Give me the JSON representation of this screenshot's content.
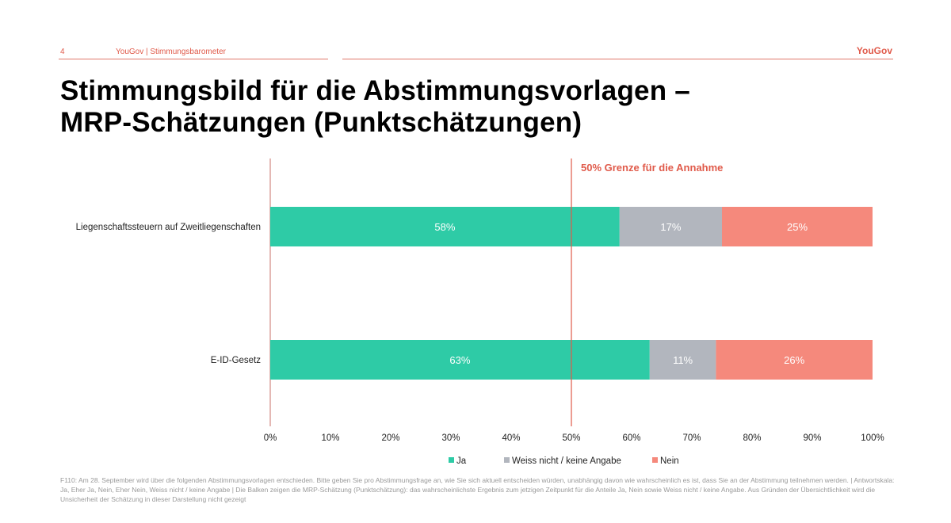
{
  "header": {
    "page_number": "4",
    "subtitle": "YouGov | Stimmungsbarometer",
    "brand": "YouGov"
  },
  "title_lines": [
    "Stimmungsbild für die Abstimmungsvorlagen –",
    "MRP-Schätzungen (Punktschätzungen)"
  ],
  "chart_data": {
    "type": "bar",
    "orientation": "horizontal",
    "stacked": true,
    "categories": [
      "Liegenschaftssteuern auf Zweitliegenschaften",
      "E-ID-Gesetz"
    ],
    "series": [
      {
        "name": "Ja",
        "values": [
          58,
          63
        ],
        "color": "#2ecba6",
        "labels": [
          "58%",
          "63%"
        ]
      },
      {
        "name": "Weiss nicht / keine Angabe",
        "values": [
          17,
          11
        ],
        "color": "#b2b6be",
        "labels": [
          "17%",
          "11%"
        ]
      },
      {
        "name": "Nein",
        "values": [
          25,
          26
        ],
        "color": "#f5897c",
        "labels": [
          "25%",
          "26%"
        ]
      }
    ],
    "xlim": [
      0,
      100
    ],
    "x_ticks": [
      "0%",
      "10%",
      "20%",
      "30%",
      "40%",
      "50%",
      "60%",
      "70%",
      "80%",
      "90%",
      "100%"
    ],
    "reference_line": {
      "value": 50,
      "label": "50% Grenze für die Annahme",
      "color": "#e05a4a"
    },
    "legend_position": "bottom",
    "grid": false
  },
  "footnote": "F110: Am 28. September wird über die folgenden Abstimmungsvorlagen entschieden. Bitte geben Sie pro Abstimmungsfrage an, wie Sie sich aktuell entscheiden würden, unabhängig davon wie wahrscheinlich es ist, dass Sie an der Abstimmung teilnehmen werden. | Antwortskala: Ja, Eher Ja, Nein, Eher Nein, Weiss nicht / keine Angabe | Die Balken zeigen die MRP-Schätzung (Punktschätzung): das wahrscheinlichste Ergebnis zum jetzigen Zeitpunkt für die Anteile Ja, Nein sowie Weiss nicht / keine Angabe. Aus Gründen der Übersichtlichkeit wird die Unsicherheit der Schätzung in dieser Darstellung nicht gezeigt"
}
